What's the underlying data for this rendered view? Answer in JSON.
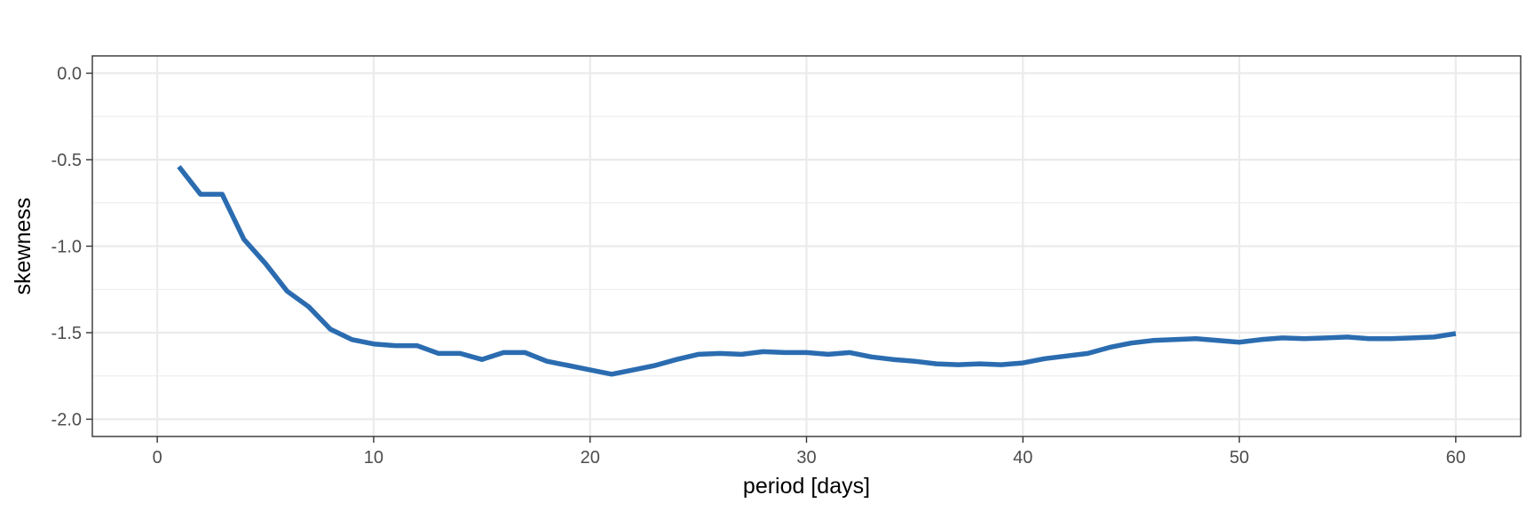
{
  "chart_data": {
    "type": "line",
    "title": "",
    "xlabel": "period [days]",
    "ylabel": "skewness",
    "xlim": [
      -3,
      63
    ],
    "ylim": [
      -2.1,
      0.1
    ],
    "x_ticks": [
      0,
      10,
      20,
      30,
      40,
      50,
      60
    ],
    "x_tick_labels": [
      "0",
      "10",
      "20",
      "30",
      "40",
      "50",
      "60"
    ],
    "y_ticks": [
      0,
      -0.5,
      -1,
      -1.5,
      -2
    ],
    "y_tick_labels": [
      "0.0",
      "-0.5",
      "-1.0",
      "-1.5",
      "-2.0"
    ],
    "y_minor_ticks": [
      -0.25,
      -0.75,
      -1.25,
      -1.75
    ],
    "grid": true,
    "line_color": "#2b6cb0",
    "series": [
      {
        "x": [
          1,
          2,
          3,
          4,
          5,
          6,
          7,
          8,
          9,
          10,
          11,
          12,
          13,
          14,
          15,
          16,
          17,
          18,
          19,
          20,
          21,
          22,
          23,
          24,
          25,
          26,
          27,
          28,
          29,
          30,
          31,
          32,
          33,
          34,
          35,
          36,
          37,
          38,
          39,
          40,
          41,
          42,
          43,
          44,
          45,
          46,
          47,
          48,
          49,
          50,
          51,
          52,
          53,
          54,
          55,
          56,
          57,
          58,
          59,
          60
        ],
        "y": [
          -0.54,
          -0.7,
          -0.7,
          -0.96,
          -1.1,
          -1.26,
          -1.35,
          -1.48,
          -1.54,
          -1.565,
          -1.575,
          -1.575,
          -1.62,
          -1.62,
          -1.655,
          -1.615,
          -1.615,
          -1.665,
          -1.69,
          -1.715,
          -1.74,
          -1.715,
          -1.69,
          -1.655,
          -1.625,
          -1.62,
          -1.625,
          -1.61,
          -1.615,
          -1.615,
          -1.625,
          -1.615,
          -1.64,
          -1.655,
          -1.665,
          -1.68,
          -1.685,
          -1.68,
          -1.685,
          -1.675,
          -1.65,
          -1.635,
          -1.62,
          -1.585,
          -1.56,
          -1.545,
          -1.54,
          -1.535,
          -1.545,
          -1.555,
          -1.54,
          -1.53,
          -1.535,
          -1.53,
          -1.525,
          -1.535,
          -1.535,
          -1.53,
          -1.525,
          -1.505
        ]
      }
    ]
  }
}
